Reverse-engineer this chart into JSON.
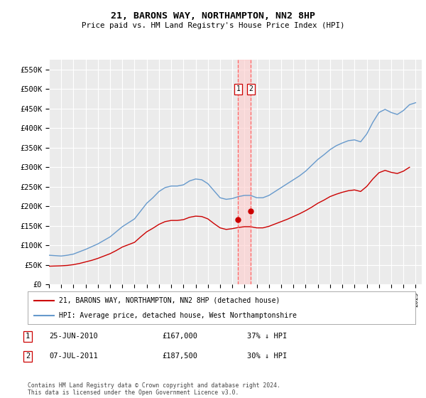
{
  "title": "21, BARONS WAY, NORTHAMPTON, NN2 8HP",
  "subtitle": "Price paid vs. HM Land Registry's House Price Index (HPI)",
  "ylabel_ticks": [
    "£0",
    "£50K",
    "£100K",
    "£150K",
    "£200K",
    "£250K",
    "£300K",
    "£350K",
    "£400K",
    "£450K",
    "£500K",
    "£550K"
  ],
  "ytick_values": [
    0,
    50000,
    100000,
    150000,
    200000,
    250000,
    300000,
    350000,
    400000,
    450000,
    500000,
    550000
  ],
  "ylim": [
    0,
    575000
  ],
  "xlim_start": 1995.0,
  "xlim_end": 2025.5,
  "background_color": "#ffffff",
  "plot_bg_color": "#ebebeb",
  "grid_color": "#ffffff",
  "hpi_color": "#6699cc",
  "price_color": "#cc0000",
  "vline1_x": 2010.48,
  "vline2_x": 2011.52,
  "vline_color": "#ff6666",
  "vline_fill_color": "#ffcccc",
  "marker1_x": 2010.48,
  "marker1_y": 167000,
  "marker2_x": 2011.52,
  "marker2_y": 187500,
  "legend_line1": "21, BARONS WAY, NORTHAMPTON, NN2 8HP (detached house)",
  "legend_line2": "HPI: Average price, detached house, West Northamptonshire",
  "table_row1": [
    "1",
    "25-JUN-2010",
    "£167,000",
    "37% ↓ HPI"
  ],
  "table_row2": [
    "2",
    "07-JUL-2011",
    "£187,500",
    "30% ↓ HPI"
  ],
  "footnote": "Contains HM Land Registry data © Crown copyright and database right 2024.\nThis data is licensed under the Open Government Licence v3.0.",
  "hpi_x": [
    1995,
    1995.5,
    1996,
    1996.5,
    1997,
    1997.5,
    1998,
    1998.5,
    1999,
    1999.5,
    2000,
    2000.5,
    2001,
    2001.5,
    2002,
    2002.5,
    2003,
    2003.5,
    2004,
    2004.5,
    2005,
    2005.5,
    2006,
    2006.5,
    2007,
    2007.5,
    2008,
    2008.5,
    2009,
    2009.5,
    2010,
    2010.5,
    2011,
    2011.5,
    2012,
    2012.5,
    2013,
    2013.5,
    2014,
    2014.5,
    2015,
    2015.5,
    2016,
    2016.5,
    2017,
    2017.5,
    2018,
    2018.5,
    2019,
    2019.5,
    2020,
    2020.5,
    2021,
    2021.5,
    2022,
    2022.5,
    2023,
    2023.5,
    2024,
    2024.5,
    2025
  ],
  "hpi_y": [
    75000,
    74000,
    73000,
    75000,
    78000,
    84000,
    90000,
    97000,
    104000,
    113000,
    122000,
    135000,
    148000,
    158000,
    168000,
    188000,
    208000,
    222000,
    238000,
    248000,
    252000,
    252000,
    255000,
    265000,
    270000,
    268000,
    258000,
    240000,
    222000,
    218000,
    220000,
    225000,
    228000,
    228000,
    222000,
    222000,
    228000,
    238000,
    248000,
    258000,
    268000,
    278000,
    290000,
    305000,
    320000,
    332000,
    345000,
    355000,
    362000,
    368000,
    370000,
    365000,
    385000,
    415000,
    440000,
    448000,
    440000,
    435000,
    445000,
    460000,
    465000
  ],
  "price_x": [
    1995,
    1995.5,
    1996,
    1996.5,
    1997,
    1997.5,
    1998,
    1998.5,
    1999,
    1999.5,
    2000,
    2000.5,
    2001,
    2001.5,
    2002,
    2002.5,
    2003,
    2003.5,
    2004,
    2004.5,
    2005,
    2005.5,
    2006,
    2006.5,
    2007,
    2007.5,
    2008,
    2008.5,
    2009,
    2009.5,
    2010,
    2010.5,
    2011,
    2011.5,
    2012,
    2012.5,
    2013,
    2013.5,
    2014,
    2014.5,
    2015,
    2015.5,
    2016,
    2016.5,
    2017,
    2017.5,
    2018,
    2018.5,
    2019,
    2019.5,
    2020,
    2020.5,
    2021,
    2021.5,
    2022,
    2022.5,
    2023,
    2023.5,
    2024,
    2024.5
  ],
  "price_y": [
    47000,
    47500,
    48000,
    49000,
    51000,
    54000,
    58000,
    62000,
    67000,
    73000,
    79000,
    87000,
    96000,
    102000,
    108000,
    122000,
    135000,
    144000,
    154000,
    161000,
    164000,
    164000,
    166000,
    172000,
    175000,
    174000,
    168000,
    156000,
    145000,
    141000,
    143000,
    146000,
    148000,
    148000,
    145000,
    145000,
    149000,
    155000,
    161000,
    167000,
    174000,
    181000,
    189000,
    198000,
    208000,
    216000,
    225000,
    231000,
    236000,
    240000,
    242000,
    238000,
    251000,
    270000,
    286000,
    292000,
    287000,
    284000,
    290000,
    300000
  ]
}
